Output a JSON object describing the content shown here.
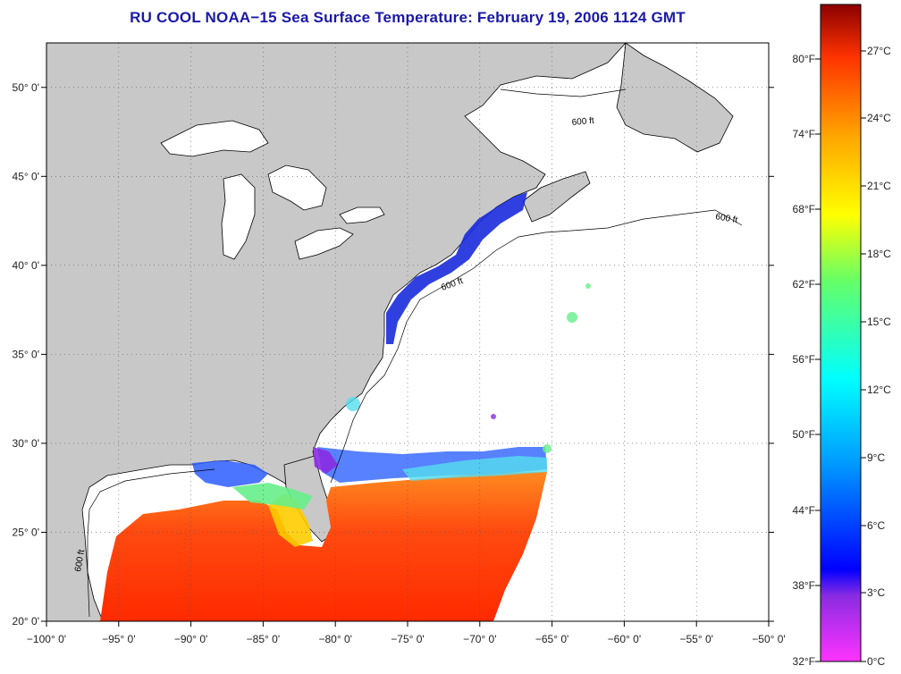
{
  "title": "RU COOL  NOAA−15  Sea Surface Temperature:  February 19, 2006 1124 GMT",
  "map": {
    "lon_range": [
      -100,
      -50
    ],
    "lat_range": [
      20,
      52.5
    ],
    "lon_ticks": [
      "−100° 0'",
      "−95° 0'",
      "−90° 0'",
      "−85° 0'",
      "−80° 0'",
      "−75° 0'",
      "−70° 0'",
      "−65° 0'",
      "−60° 0'",
      "−55° 0'",
      "−50° 0'"
    ],
    "lat_ticks": [
      "50° 0'",
      "45° 0'",
      "40° 0'",
      "35° 0'",
      "30° 0'",
      "25° 0'",
      "20° 0'"
    ],
    "contour_label": "600 ft",
    "colors": {
      "land": "#c8c8c8",
      "ocean_no_data": "#ffffff",
      "coast": "#000000",
      "grid": "#555555"
    }
  },
  "colorbar": {
    "fahrenheit_labels": [
      "80°F",
      "74°F",
      "68°F",
      "62°F",
      "56°F",
      "50°F",
      "44°F",
      "38°F",
      "32°F"
    ],
    "celsius_labels": [
      "27°C",
      "24°C",
      "21°C",
      "18°C",
      "15°C",
      "12°C",
      "9°C",
      "6°C",
      "3°C",
      "0°C"
    ],
    "stops": [
      "#ff33ff",
      "#8a2be2",
      "#0000ff",
      "#0099ff",
      "#00ffff",
      "#66ff66",
      "#ffff00",
      "#ffa500",
      "#ff3300",
      "#8b0000"
    ]
  }
}
